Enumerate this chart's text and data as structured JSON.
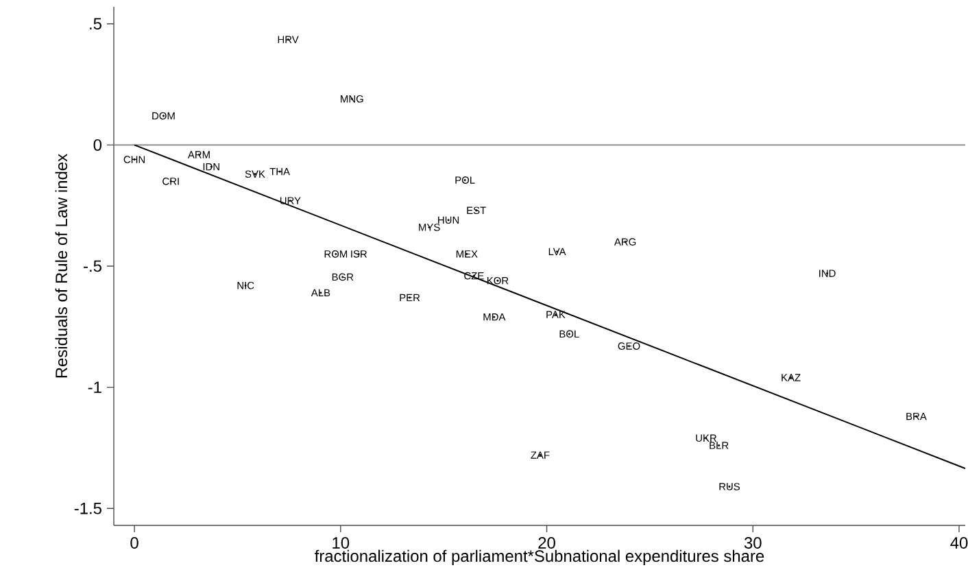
{
  "chart_data": {
    "type": "scatter",
    "xlabel": "fractionalization of parliament*Subnational expenditures share",
    "ylabel": "Residuals of Rule of Law index",
    "xlim": [
      -1,
      40.3
    ],
    "ylim": [
      -1.57,
      0.57
    ],
    "xticks": [
      0,
      10,
      20,
      30,
      40
    ],
    "yticks": [
      {
        "value": 0.5,
        "label": ".5"
      },
      0,
      {
        "value": -0.5,
        "label": "-.5"
      },
      -1,
      -1.5
    ],
    "grid": false,
    "ref_lines": [
      {
        "axis": "y",
        "value": 0,
        "color": "#808080"
      }
    ],
    "series": [
      {
        "type": "scatter",
        "marker": "circle",
        "color": "#000000",
        "x": [
          7.45,
          10.55,
          1.41,
          0,
          3.14,
          3.73,
          1.77,
          5.85,
          7.05,
          7.56,
          16.03,
          16.58,
          15.23,
          14.3,
          9.77,
          10.88,
          16.12,
          10.1,
          5.39,
          9.04,
          16.47,
          17.62,
          13.35,
          17.45,
          20.5,
          23.81,
          20.43,
          21.09,
          23.99,
          19.68,
          33.6,
          31.84,
          37.92,
          27.73,
          28.35,
          28.86
        ],
        "values": [
          0.435,
          0.19,
          0.12,
          -0.06,
          -0.04,
          -0.09,
          -0.15,
          -0.12,
          -0.11,
          -0.23,
          -0.145,
          -0.27,
          -0.31,
          -0.34,
          -0.45,
          -0.45,
          -0.45,
          -0.545,
          -0.58,
          -0.61,
          -0.54,
          -0.56,
          -0.63,
          -0.71,
          -0.44,
          -0.4,
          -0.7,
          -0.78,
          -0.83,
          -1.28,
          -0.53,
          -0.96,
          -1.12,
          -1.21,
          -1.24,
          -1.41
        ],
        "value_labels": [
          "HRV",
          "MNG",
          "DOM",
          "CHN",
          "ARM",
          "IDN",
          "CRI",
          "SVK",
          "THA",
          "URY",
          "POL",
          "EST",
          "HUN",
          "MYS",
          "ROM",
          "ISR",
          "MEX",
          "BGR",
          "NIC",
          "ALB",
          "CZE",
          "KOR",
          "PER",
          "MDA",
          "LVA",
          "ARG",
          "PAK",
          "BOL",
          "GEO",
          "ZAF",
          "IND",
          "KAZ",
          "BRA",
          "UKR",
          "BLR",
          "RUS"
        ]
      },
      {
        "type": "line",
        "color": "#000000",
        "line_style": "solid",
        "x": [
          0,
          40.3
        ],
        "values": [
          0,
          -1.335
        ]
      }
    ]
  }
}
